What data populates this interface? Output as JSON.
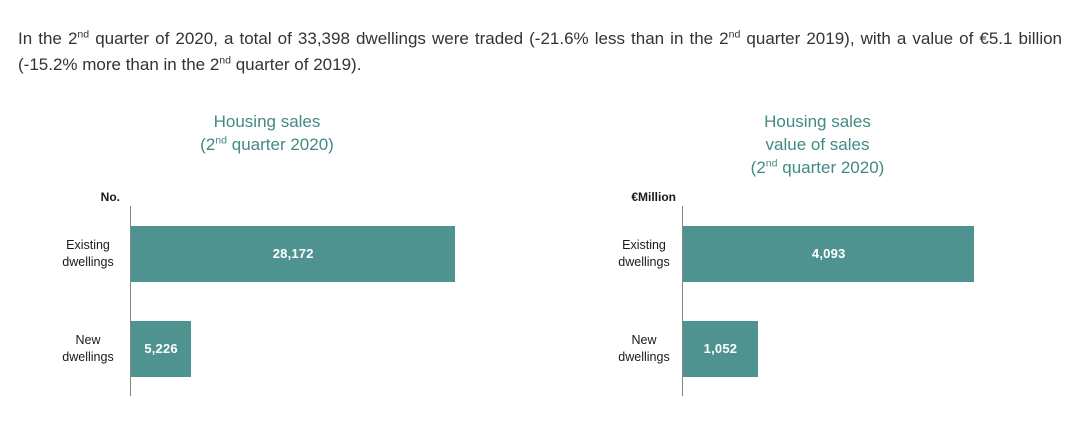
{
  "intro": {
    "s1": "In the 2",
    "s2": "nd",
    "s3": " quarter of 2020, a total of 33,398 dwellings were traded (-21.6% less than in the 2",
    "s4": "nd",
    "s5": " quarter 2019), with a value of €5.1 billion (-15.2% more than in the 2",
    "s6": "nd",
    "s7": " quarter of 2019)."
  },
  "charts": {
    "left": {
      "title_line1": "Housing sales",
      "sub_pre": "(2",
      "sub_sup": "nd",
      "sub_post": " quarter 2020)"
    },
    "right": {
      "title_line1": "Housing sales",
      "title_line2": "value of sales",
      "sub_pre": "(2",
      "sub_sup": "nd",
      "sub_post": " quarter 2020)"
    }
  },
  "chart_data": [
    {
      "type": "bar",
      "orientation": "horizontal",
      "title": "Housing sales (2nd quarter 2020)",
      "unit_label": "No.",
      "categories": [
        "Existing dwellings",
        "New dwellings"
      ],
      "values": [
        28172,
        5226
      ],
      "value_labels": [
        "28,172",
        "5,226"
      ],
      "xlim": [
        0,
        35000
      ],
      "grid": false,
      "legend": "none",
      "bar_color": "#4e938f"
    },
    {
      "type": "bar",
      "orientation": "horizontal",
      "title": "Housing sales value of sales (2nd quarter 2020)",
      "unit_label": "€Million",
      "categories": [
        "Existing dwellings",
        "New dwellings"
      ],
      "values": [
        4093,
        1052
      ],
      "value_labels": [
        "4,093",
        "1,052"
      ],
      "xlim": [
        0,
        5000
      ],
      "grid": false,
      "legend": "none",
      "bar_color": "#4e938f"
    }
  ],
  "colors": {
    "bar_teal": "#4e938f",
    "title_teal": "#438a84",
    "axis_gray": "#848484",
    "body_text": "#333333",
    "value_text": "#ffffff"
  }
}
